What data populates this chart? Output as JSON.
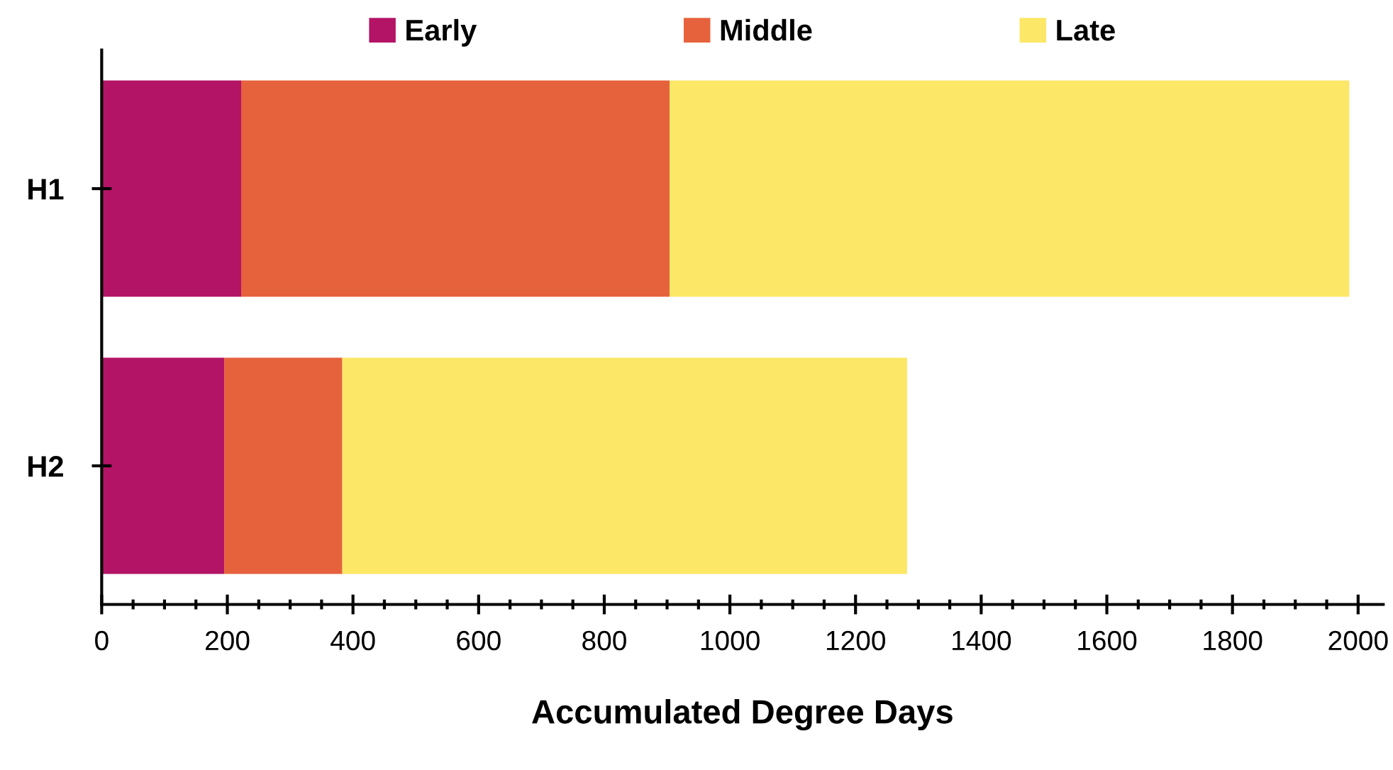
{
  "chart_data": {
    "type": "bar",
    "orientation": "horizontal",
    "stacked": true,
    "xlabel": "Accumulated Degree Days",
    "categories": [
      "H1",
      "H2"
    ],
    "series": [
      {
        "name": "Early",
        "color": "#b31466",
        "values": [
          222,
          195
        ]
      },
      {
        "name": "Middle",
        "color": "#e6623d",
        "values": [
          682,
          188
        ]
      },
      {
        "name": "Late",
        "color": "#fce766",
        "values": [
          1082,
          899
        ]
      }
    ],
    "xlim": [
      0,
      2040
    ],
    "xticks": [
      0,
      {
        "value": 50,
        "label": null
      },
      {
        "value": 100,
        "label": null
      },
      {
        "value": 150,
        "label": null
      },
      200,
      {
        "value": 250,
        "label": null
      },
      {
        "value": 300,
        "label": null
      },
      {
        "value": 350,
        "label": null
      },
      400,
      {
        "value": 450,
        "label": null
      },
      {
        "value": 500,
        "label": null
      },
      {
        "value": 550,
        "label": null
      },
      600,
      {
        "value": 650,
        "label": null
      },
      {
        "value": 700,
        "label": null
      },
      {
        "value": 750,
        "label": null
      },
      800,
      {
        "value": 850,
        "label": null
      },
      {
        "value": 900,
        "label": null
      },
      {
        "value": 950,
        "label": null
      },
      1000,
      {
        "value": 1050,
        "label": null
      },
      {
        "value": 1100,
        "label": null
      },
      {
        "value": 1150,
        "label": null
      },
      1200,
      {
        "value": 1250,
        "label": null
      },
      {
        "value": 1300,
        "label": null
      },
      {
        "value": 1350,
        "label": null
      },
      1400,
      {
        "value": 1450,
        "label": null
      },
      {
        "value": 1500,
        "label": null
      },
      {
        "value": 1550,
        "label": null
      },
      1600,
      {
        "value": 1650,
        "label": null
      },
      {
        "value": 1700,
        "label": null
      },
      {
        "value": 1750,
        "label": null
      },
      1800,
      {
        "value": 1850,
        "label": null
      },
      {
        "value": 1900,
        "label": null
      },
      {
        "value": 1950,
        "label": null
      },
      2000
    ],
    "legend": "top",
    "grid": false
  }
}
